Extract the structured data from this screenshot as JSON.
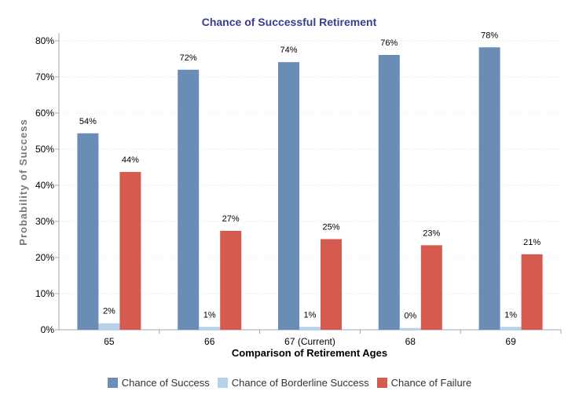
{
  "chart_data": {
    "type": "bar",
    "title": "Chance of Successful Retirement",
    "xlabel": "Comparison of Retirement Ages",
    "ylabel": "Probability of Success",
    "categories": [
      "65",
      "66",
      "67 (Current)",
      "68",
      "69"
    ],
    "ylim": [
      0,
      80
    ],
    "yticks": [
      0,
      10,
      20,
      30,
      40,
      50,
      60,
      70,
      80
    ],
    "ytick_labels": [
      "0%",
      "10%",
      "20%",
      "30%",
      "40%",
      "50%",
      "60%",
      "70%",
      "80%"
    ],
    "grid": true,
    "legend_position": "bottom-center",
    "series": [
      {
        "name": "Chance of Success",
        "color": "#6a8db6",
        "values": [
          54.4,
          72,
          74.1,
          76.1,
          78.2
        ],
        "labels": [
          "54%",
          "72%",
          "74%",
          "76%",
          "78%"
        ]
      },
      {
        "name": "Chance of Borderline Success",
        "color": "#b8d1ea",
        "values": [
          1.8,
          0.8,
          0.8,
          0.5,
          0.8
        ],
        "labels": [
          "2%",
          "1%",
          "1%",
          "0%",
          "1%"
        ]
      },
      {
        "name": "Chance of Failure",
        "color": "#d55a4f",
        "values": [
          43.7,
          27.4,
          25.1,
          23.4,
          20.9
        ],
        "labels": [
          "44%",
          "27%",
          "25%",
          "23%",
          "21%"
        ]
      }
    ]
  },
  "colors": {
    "title": "#3b3b8f",
    "axis": "#9fa8b5",
    "grid": "#e6e6e6"
  }
}
